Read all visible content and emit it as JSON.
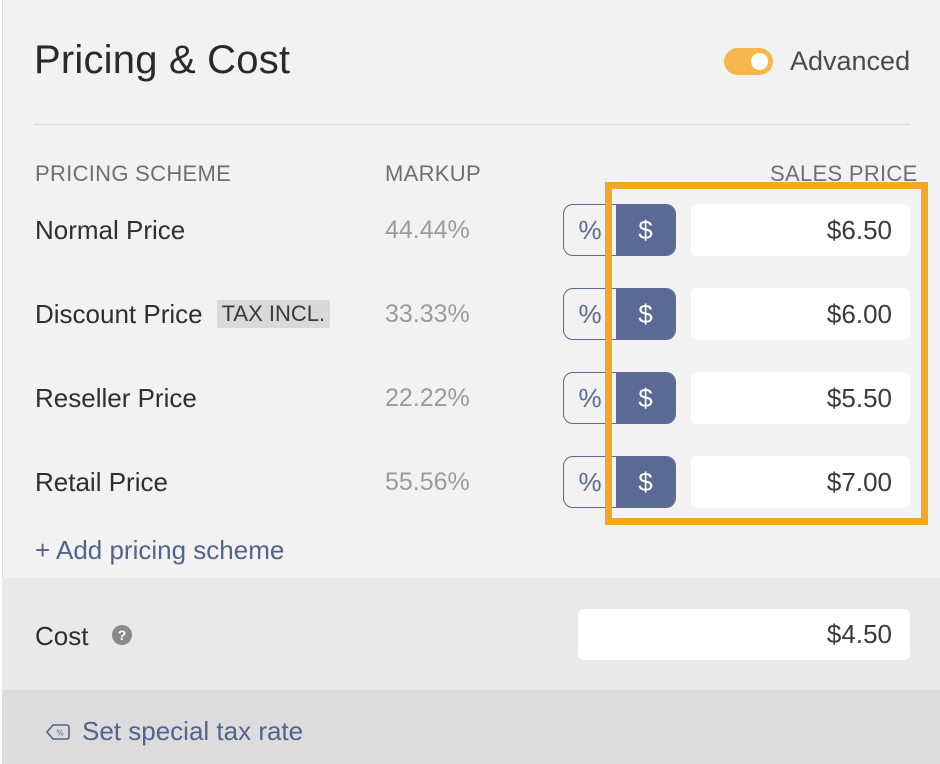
{
  "header": {
    "title": "Pricing & Cost",
    "advanced_label": "Advanced",
    "advanced_on": true
  },
  "columns": {
    "scheme": "PRICING SCHEME",
    "markup": "MARKUP",
    "sales_price": "SALES PRICE"
  },
  "rows": [
    {
      "label": "Normal Price",
      "badge": "",
      "markup": "44.44%",
      "pct": "%",
      "dollar": "$",
      "price": "$6.50"
    },
    {
      "label": "Discount Price",
      "badge": "TAX INCL.",
      "markup": "33.33%",
      "pct": "%",
      "dollar": "$",
      "price": "$6.00"
    },
    {
      "label": "Reseller Price",
      "badge": "",
      "markup": "22.22%",
      "pct": "%",
      "dollar": "$",
      "price": "$5.50"
    },
    {
      "label": "Retail Price",
      "badge": "",
      "markup": "55.56%",
      "pct": "%",
      "dollar": "$",
      "price": "$7.00"
    }
  ],
  "add_scheme_label": "+ Add pricing scheme",
  "cost": {
    "label": "Cost",
    "help": "?",
    "value": "$4.50"
  },
  "tax": {
    "label": "Set special tax rate"
  },
  "colors": {
    "accent": "#5a6a94",
    "toggle": "#f6b84c",
    "highlight": "#f5a623"
  }
}
